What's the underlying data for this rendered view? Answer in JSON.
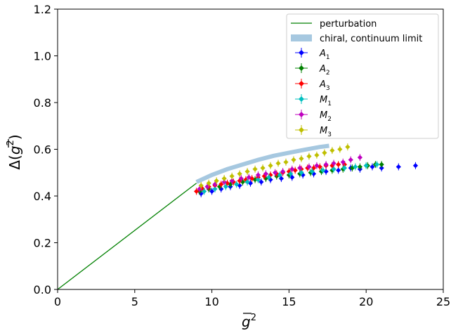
{
  "chart_data": {
    "type": "scatter",
    "xlabel_base": "g",
    "xlabel_sup": "2",
    "ylabel_pre": "Δ(",
    "ylabel_g": "g",
    "ylabel_sup": "2",
    "ylabel_post": ")",
    "xlim": [
      0,
      25
    ],
    "ylim": [
      0.0,
      1.2
    ],
    "xticks": [
      0,
      5,
      10,
      15,
      20,
      25
    ],
    "xtick_labels": [
      "0",
      "5",
      "10",
      "15",
      "20",
      "25"
    ],
    "yticks": [
      0.0,
      0.2,
      0.4,
      0.6,
      0.8,
      1.0,
      1.2
    ],
    "ytick_labels": [
      "0.0",
      "0.2",
      "0.4",
      "0.6",
      "0.8",
      "1.0",
      "1.2"
    ],
    "grid": false,
    "legend_position": "top-right",
    "perturbation": {
      "name": "perturbation",
      "color": "#008000",
      "x": [
        0.0,
        9.0
      ],
      "y": [
        0.0,
        0.455
      ]
    },
    "chiral_band": {
      "name": "chiral, continuum limit",
      "color": "#a6c8e0",
      "x": [
        9.0,
        10.0,
        11.0,
        12.0,
        13.0,
        14.0,
        15.0,
        16.0,
        17.0,
        17.6
      ],
      "y": [
        0.46,
        0.49,
        0.515,
        0.535,
        0.555,
        0.572,
        0.585,
        0.598,
        0.61,
        0.615
      ]
    },
    "series": [
      {
        "name": "A",
        "sub": "1",
        "color": "#0000ff",
        "x": [
          9.3,
          10.0,
          10.6,
          11.2,
          11.8,
          12.5,
          13.2,
          13.8,
          14.5,
          15.2,
          15.9,
          16.6,
          17.4,
          18.2,
          19.0,
          19.6,
          20.4,
          21.0,
          22.1,
          23.2
        ],
        "y": [
          0.41,
          0.42,
          0.43,
          0.44,
          0.445,
          0.455,
          0.46,
          0.47,
          0.475,
          0.48,
          0.49,
          0.495,
          0.505,
          0.51,
          0.52,
          0.515,
          0.525,
          0.52,
          0.525,
          0.53
        ]
      },
      {
        "name": "A",
        "sub": "2",
        "color": "#008000",
        "x": [
          9.2,
          9.8,
          10.5,
          11.2,
          12.0,
          12.8,
          13.5,
          14.2,
          15.0,
          15.7,
          16.4,
          17.1,
          17.8,
          18.5,
          19.1,
          19.6,
          20.1,
          20.6,
          21.0
        ],
        "y": [
          0.42,
          0.43,
          0.44,
          0.45,
          0.46,
          0.47,
          0.475,
          0.485,
          0.49,
          0.495,
          0.5,
          0.505,
          0.51,
          0.515,
          0.52,
          0.525,
          0.53,
          0.535,
          0.535
        ]
      },
      {
        "name": "A",
        "sub": "3",
        "color": "#ff0000",
        "x": [
          9.0,
          9.4,
          9.8,
          10.2,
          10.6,
          11.0,
          11.4,
          11.8,
          12.2,
          12.6,
          13.0,
          13.4,
          13.8,
          14.2,
          14.6,
          15.0,
          15.4,
          15.8,
          16.2,
          16.6,
          17.0,
          17.4,
          17.8,
          18.2,
          18.6
        ],
        "y": [
          0.42,
          0.43,
          0.44,
          0.445,
          0.45,
          0.455,
          0.46,
          0.465,
          0.47,
          0.475,
          0.48,
          0.485,
          0.49,
          0.495,
          0.5,
          0.505,
          0.51,
          0.515,
          0.52,
          0.52,
          0.525,
          0.53,
          0.53,
          0.535,
          0.535
        ]
      },
      {
        "name": "M",
        "sub": "1",
        "color": "#00bfbf",
        "x": [
          9.5,
          10.2,
          10.9,
          11.6,
          12.3,
          13.0,
          13.7,
          14.4,
          15.1,
          15.8,
          16.5,
          17.2,
          17.9,
          18.6,
          19.3,
          20.0,
          20.7
        ],
        "y": [
          0.42,
          0.43,
          0.44,
          0.45,
          0.46,
          0.47,
          0.48,
          0.49,
          0.495,
          0.5,
          0.505,
          0.51,
          0.515,
          0.52,
          0.525,
          0.53,
          0.535
        ]
      },
      {
        "name": "M",
        "sub": "2",
        "color": "#bf00bf",
        "x": [
          9.2,
          9.7,
          10.2,
          10.8,
          11.3,
          11.9,
          12.4,
          13.0,
          13.5,
          14.1,
          14.6,
          15.2,
          15.7,
          16.3,
          16.8,
          17.4,
          17.9,
          18.5,
          19.0,
          19.6
        ],
        "y": [
          0.43,
          0.44,
          0.45,
          0.46,
          0.465,
          0.475,
          0.48,
          0.49,
          0.495,
          0.5,
          0.505,
          0.515,
          0.52,
          0.525,
          0.53,
          0.535,
          0.54,
          0.545,
          0.555,
          0.565
        ]
      },
      {
        "name": "M",
        "sub": "3",
        "color": "#bfbf00",
        "x": [
          9.3,
          9.8,
          10.3,
          10.8,
          11.3,
          11.8,
          12.3,
          12.8,
          13.3,
          13.8,
          14.3,
          14.8,
          15.3,
          15.8,
          16.3,
          16.8,
          17.3,
          17.8,
          18.3,
          18.8
        ],
        "y": [
          0.445,
          0.455,
          0.465,
          0.475,
          0.485,
          0.495,
          0.505,
          0.515,
          0.52,
          0.53,
          0.54,
          0.545,
          0.555,
          0.56,
          0.57,
          0.575,
          0.585,
          0.595,
          0.6,
          0.61
        ]
      }
    ]
  }
}
